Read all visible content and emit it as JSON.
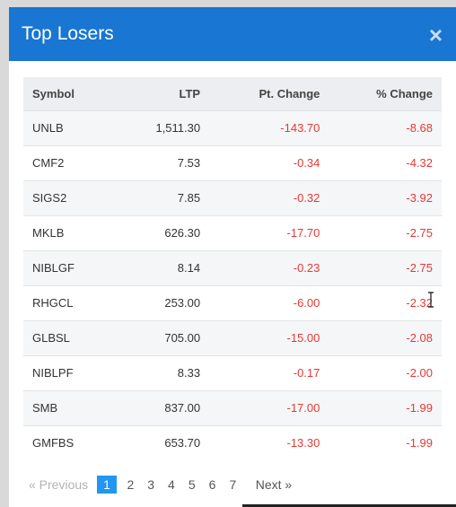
{
  "modal": {
    "title": "Top Losers",
    "close_label": "×"
  },
  "table": {
    "columns": [
      "Symbol",
      "LTP",
      "Pt. Change",
      "% Change"
    ],
    "rows": [
      {
        "symbol": "UNLB",
        "ltp": "1,511.30",
        "pt_change": "-143.70",
        "pct_change": "-8.68"
      },
      {
        "symbol": "CMF2",
        "ltp": "7.53",
        "pt_change": "-0.34",
        "pct_change": "-4.32"
      },
      {
        "symbol": "SIGS2",
        "ltp": "7.85",
        "pt_change": "-0.32",
        "pct_change": "-3.92"
      },
      {
        "symbol": "MKLB",
        "ltp": "626.30",
        "pt_change": "-17.70",
        "pct_change": "-2.75"
      },
      {
        "symbol": "NIBLGF",
        "ltp": "8.14",
        "pt_change": "-0.23",
        "pct_change": "-2.75"
      },
      {
        "symbol": "RHGCL",
        "ltp": "253.00",
        "pt_change": "-6.00",
        "pct_change": "-2.32"
      },
      {
        "symbol": "GLBSL",
        "ltp": "705.00",
        "pt_change": "-15.00",
        "pct_change": "-2.08"
      },
      {
        "symbol": "NIBLPF",
        "ltp": "8.33",
        "pt_change": "-0.17",
        "pct_change": "-2.00"
      },
      {
        "symbol": "SMB",
        "ltp": "837.00",
        "pt_change": "-17.00",
        "pct_change": "-1.99"
      },
      {
        "symbol": "GMFBS",
        "ltp": "653.70",
        "pt_change": "-13.30",
        "pct_change": "-1.99"
      }
    ]
  },
  "pagination": {
    "previous_label": "« Previous",
    "pages": [
      "1",
      "2",
      "3",
      "4",
      "5",
      "6",
      "7"
    ],
    "active_page": "1",
    "next_label": "Next »"
  },
  "colors": {
    "header_bg": "#1976d2",
    "negative": "#e53935",
    "active_page": "#2196f3"
  }
}
